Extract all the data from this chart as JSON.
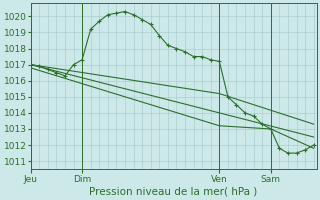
{
  "background_color": "#cce8e8",
  "grid_color": "#aacfcf",
  "line_color": "#2d6e2d",
  "xlabel": "Pression niveau de la mer( hPa )",
  "ylim": [
    1010.5,
    1020.8
  ],
  "yticks": [
    1011,
    1012,
    1013,
    1014,
    1015,
    1016,
    1017,
    1018,
    1019,
    1020
  ],
  "day_labels": [
    "Jeu",
    "Dim",
    "Ven",
    "Sam"
  ],
  "day_positions": [
    0.0,
    0.18,
    0.66,
    0.84
  ],
  "xlim": [
    0.0,
    1.0
  ],
  "series1_x": [
    0.0,
    0.03,
    0.06,
    0.09,
    0.12,
    0.15,
    0.18,
    0.21,
    0.24,
    0.27,
    0.3,
    0.33,
    0.36,
    0.39,
    0.42,
    0.45,
    0.48,
    0.51,
    0.54,
    0.57,
    0.6,
    0.63,
    0.66,
    0.69,
    0.72,
    0.75,
    0.78,
    0.81,
    0.84,
    0.87,
    0.9,
    0.93,
    0.96,
    0.99
  ],
  "series1_y": [
    1017.0,
    1016.9,
    1016.7,
    1016.5,
    1016.3,
    1017.0,
    1017.3,
    1019.2,
    1019.7,
    1020.1,
    1020.2,
    1020.3,
    1020.1,
    1019.8,
    1019.5,
    1018.8,
    1018.2,
    1018.0,
    1017.8,
    1017.5,
    1017.5,
    1017.3,
    1017.2,
    1015.0,
    1014.5,
    1014.0,
    1013.8,
    1013.3,
    1013.0,
    1011.8,
    1011.5,
    1011.5,
    1011.7,
    1012.0
  ],
  "series2_x": [
    0.0,
    0.66,
    0.99
  ],
  "series2_y": [
    1017.0,
    1015.2,
    1013.3
  ],
  "series3_x": [
    0.0,
    0.66,
    0.84,
    0.99
  ],
  "series3_y": [
    1016.8,
    1013.2,
    1013.0,
    1011.8
  ],
  "series4_x": [
    0.0,
    0.99
  ],
  "series4_y": [
    1017.0,
    1012.5
  ]
}
